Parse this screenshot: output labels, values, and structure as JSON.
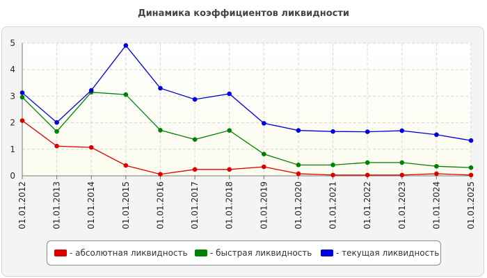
{
  "chart_data": {
    "type": "line",
    "title": "Динамика коэффициентов ликвидности",
    "categories": [
      "01.01.2012",
      "01.01.2013",
      "01.01.2014",
      "01.01.2015",
      "01.01.2016",
      "01.01.2017",
      "01.01.2018",
      "01.01.2019",
      "01.01.2020",
      "01.01.2021",
      "01.01.2022",
      "01.01.2023",
      "01.01.2024",
      "01.01.2025"
    ],
    "ylim": [
      0,
      5
    ],
    "yticks": [
      "0",
      "1",
      "2",
      "3",
      "4",
      "5"
    ],
    "grid": true,
    "legend_position": "bottom",
    "series": [
      {
        "name": "- абсолютная ликвидность",
        "color": "#dd0000",
        "values": [
          2.08,
          1.12,
          1.07,
          0.39,
          0.06,
          0.24,
          0.24,
          0.34,
          0.08,
          0.03,
          0.03,
          0.03,
          0.08,
          0.03
        ]
      },
      {
        "name": "- быстрая ликвидность",
        "color": "#008000",
        "values": [
          2.96,
          1.67,
          3.15,
          3.06,
          1.72,
          1.37,
          1.71,
          0.82,
          0.41,
          0.41,
          0.5,
          0.5,
          0.36,
          0.31
        ]
      },
      {
        "name": "- текущая ликвидность",
        "color": "#0000dd",
        "values": [
          3.13,
          2.01,
          3.22,
          4.91,
          3.3,
          2.88,
          3.09,
          1.98,
          1.71,
          1.67,
          1.66,
          1.7,
          1.55,
          1.33
        ]
      }
    ]
  }
}
